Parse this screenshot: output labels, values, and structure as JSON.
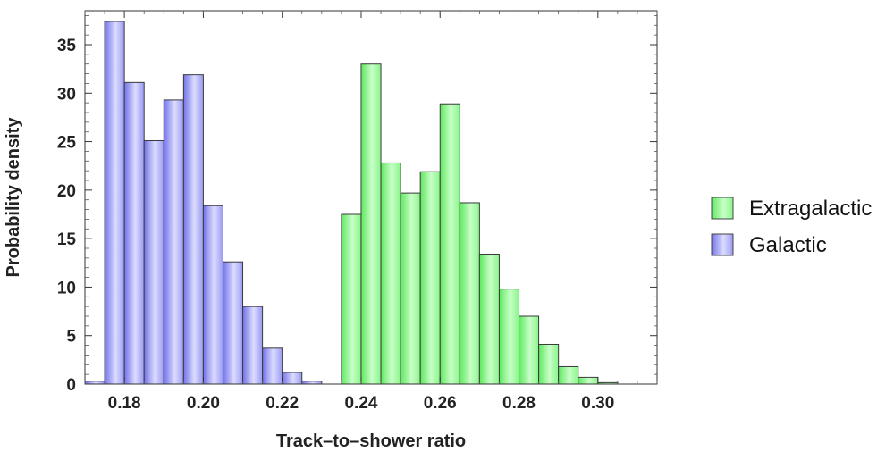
{
  "chart_data": {
    "type": "bar",
    "subtype": "histogram",
    "xlabel": "Track–to–shower ratio",
    "ylabel": "Probability density",
    "xlim": [
      0.17,
      0.315
    ],
    "ylim": [
      0,
      38.5
    ],
    "x_ticks": [
      "0.18",
      "0.20",
      "0.22",
      "0.24",
      "0.26",
      "0.28",
      "0.30"
    ],
    "x_tick_values": [
      0.18,
      0.2,
      0.22,
      0.24,
      0.26,
      0.28,
      0.3
    ],
    "y_ticks": [
      "0",
      "5",
      "10",
      "15",
      "20",
      "25",
      "30",
      "35"
    ],
    "y_tick_values": [
      0,
      5,
      10,
      15,
      20,
      25,
      30,
      35
    ],
    "bin_width": 0.005,
    "legend_position": "right",
    "series": [
      {
        "name": "Extragalactic",
        "color": "#7CF07C",
        "bins_start": [
          0.235,
          0.24,
          0.245,
          0.25,
          0.255,
          0.26,
          0.265,
          0.27,
          0.275,
          0.28,
          0.285,
          0.29,
          0.295,
          0.3
        ],
        "values": [
          17.5,
          33.0,
          22.8,
          19.7,
          21.9,
          28.9,
          18.7,
          13.4,
          9.8,
          7.0,
          4.1,
          1.8,
          0.7,
          0.15
        ]
      },
      {
        "name": "Galactic",
        "color": "#8C8CF2",
        "bins_start": [
          0.17,
          0.175,
          0.18,
          0.185,
          0.19,
          0.195,
          0.2,
          0.205,
          0.21,
          0.215,
          0.22,
          0.225
        ],
        "values": [
          0.3,
          37.4,
          31.1,
          25.1,
          29.3,
          31.9,
          18.4,
          12.6,
          8.0,
          3.7,
          1.2,
          0.3
        ]
      }
    ]
  }
}
